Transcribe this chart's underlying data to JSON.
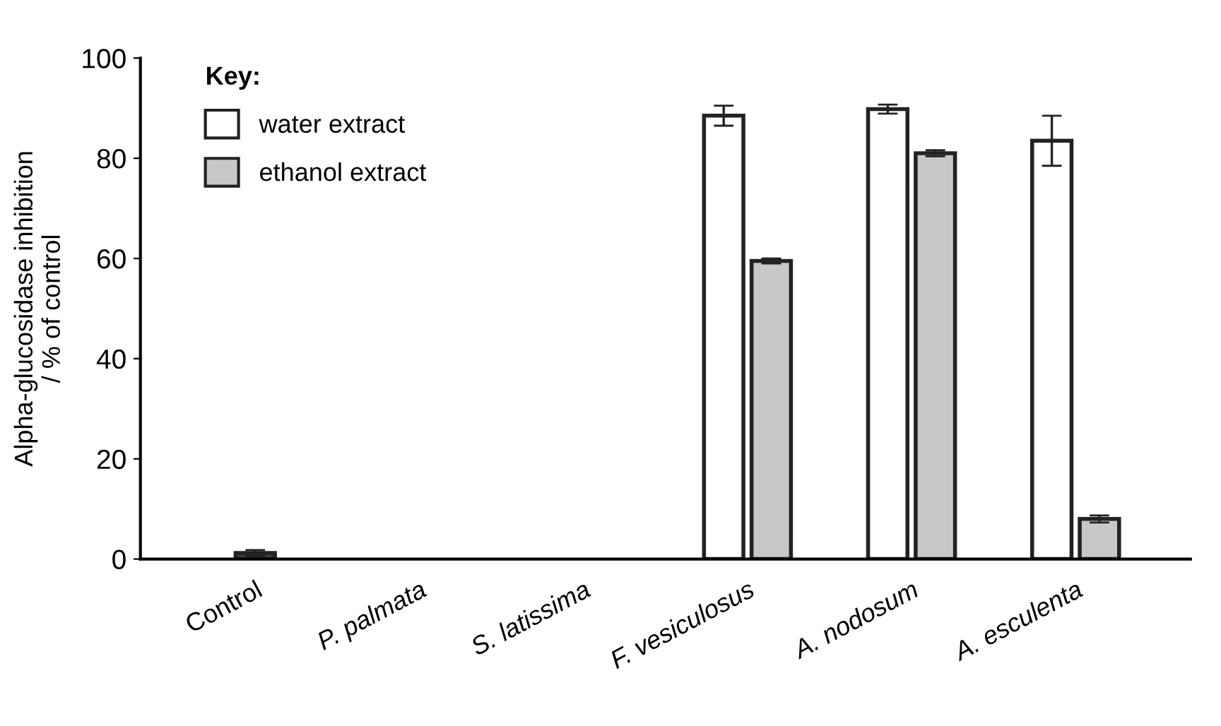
{
  "chart_data": {
    "type": "bar",
    "ylabel": "Alpha-glucosidase inhibition\n/ % of control",
    "categories": [
      "Control",
      "P. palmata",
      "S. latissima",
      "F. vesiculosus",
      "A. nodosum",
      "A. esculenta"
    ],
    "series": [
      {
        "name": "water extract",
        "color": "#ffffff",
        "values": [
          null,
          null,
          null,
          88.5,
          89.8,
          83.5
        ],
        "errors": [
          null,
          null,
          null,
          2,
          0.9,
          5
        ]
      },
      {
        "name": "ethanol extract",
        "color": "#c8c8c8",
        "values": [
          null,
          null,
          null,
          59.5,
          81,
          8
        ],
        "errors": [
          null,
          null,
          null,
          0.5,
          0.6,
          0.7
        ]
      },
      {
        "color": "#404040",
        "values": [
          1.2,
          null,
          null,
          null,
          null,
          null
        ],
        "errors": [
          0.6,
          null,
          null,
          null,
          null,
          null
        ]
      }
    ],
    "legend_title": "Key:",
    "legend": "top left",
    "ylim": [
      0,
      100
    ],
    "yticks": [
      0,
      20,
      40,
      60,
      80,
      100
    ],
    "grid": false
  }
}
